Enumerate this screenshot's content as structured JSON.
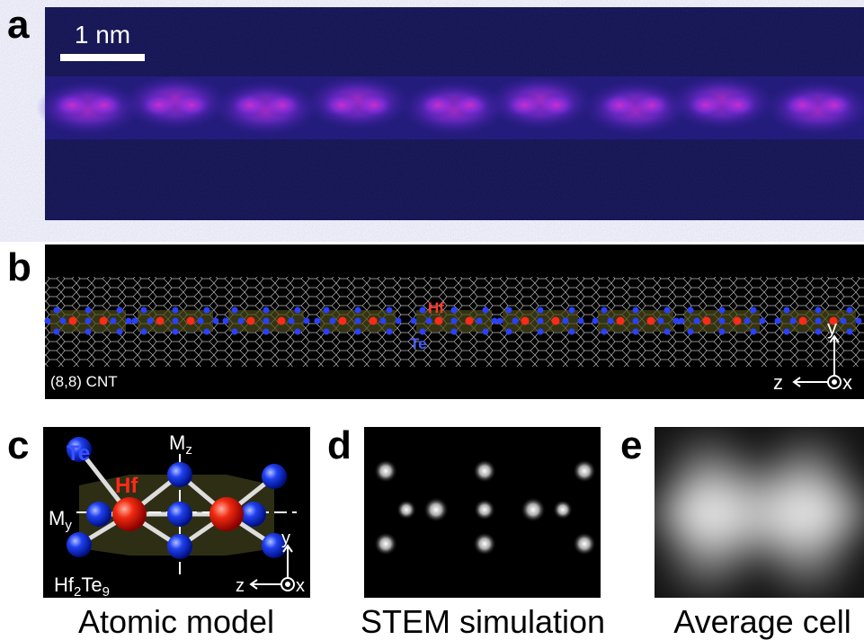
{
  "panels": {
    "a": {
      "label": "a",
      "scale_bar": "1 nm"
    },
    "b": {
      "label": "b",
      "hf": "Hf",
      "te": "Te",
      "tube": "(8,8) CNT",
      "axis_h": "z",
      "axis_v": "y",
      "axis_out": "x"
    },
    "c": {
      "label": "c",
      "te": "Te",
      "hf": "Hf",
      "mirror_z": {
        "base": "M",
        "sub": "z"
      },
      "mirror_y": {
        "base": "M",
        "sub": "y"
      },
      "formula": [
        "Hf",
        "2",
        "Te",
        "9"
      ],
      "axis_h": "z",
      "axis_v": "y",
      "axis_out": "x",
      "caption": "Atomic model"
    },
    "d": {
      "label": "d",
      "caption": "STEM simulation"
    },
    "e": {
      "label": "e",
      "caption": "Average cell"
    }
  }
}
